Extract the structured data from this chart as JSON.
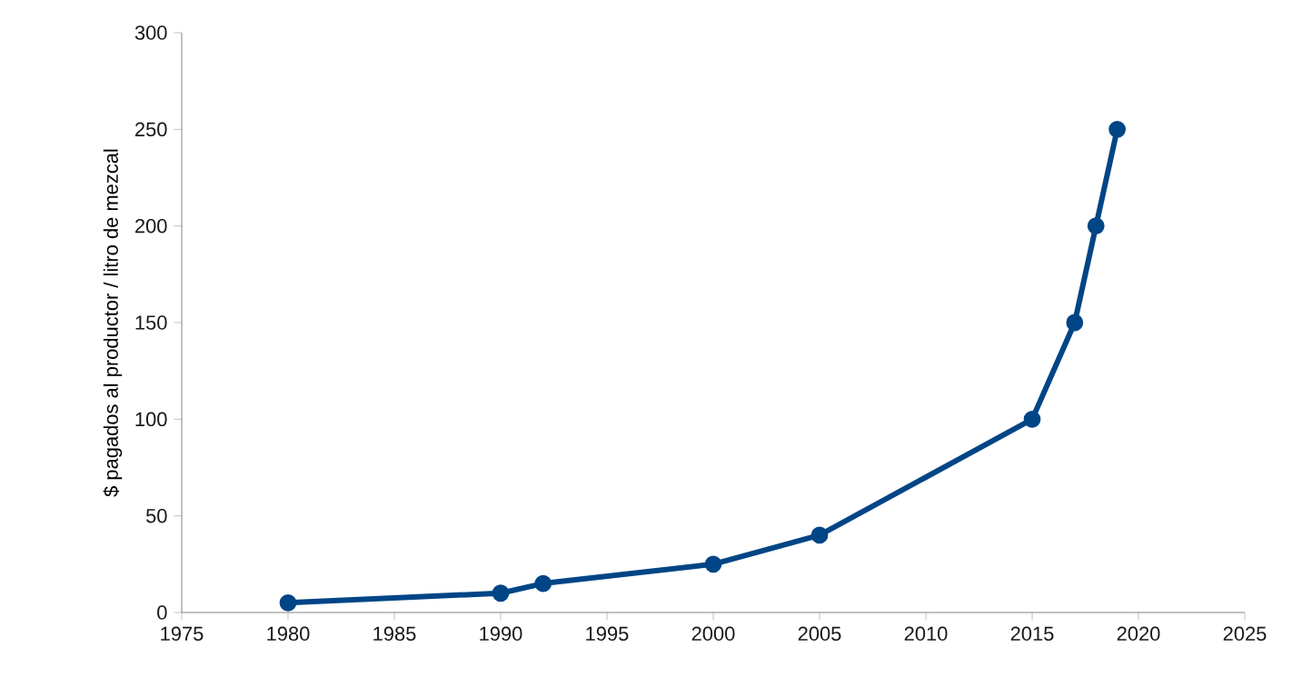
{
  "chart_data": {
    "type": "line",
    "ylabel": "$ pagados al productor / litro de mezcal",
    "x": [
      1980,
      1990,
      1992,
      2000,
      2005,
      2015,
      2017,
      2018,
      2019
    ],
    "series": [
      {
        "color": "#004586",
        "values": [
          5,
          10,
          15,
          25,
          40,
          100,
          150,
          200,
          250
        ]
      }
    ],
    "xlim": [
      1975,
      2025
    ],
    "ylim": [
      0,
      300
    ],
    "xticks": [
      1975,
      1980,
      1985,
      1990,
      1995,
      2000,
      2005,
      2010,
      2015,
      2020,
      2025
    ],
    "yticks": [
      0,
      50,
      100,
      150,
      200,
      250,
      300
    ],
    "marker": "circle",
    "line_style": "solid",
    "grid": false
  }
}
